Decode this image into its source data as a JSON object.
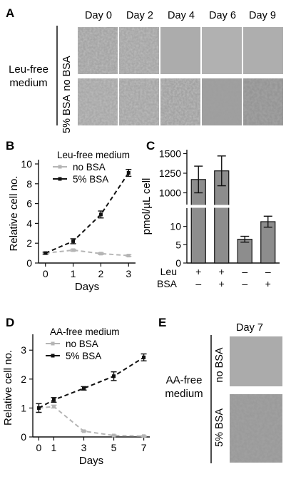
{
  "panel_a": {
    "letter": "A",
    "days": [
      "Day 0",
      "Day 2",
      "Day 4",
      "Day 6",
      "Day 9"
    ],
    "side_label_line1": "Leu-free",
    "side_label_line2": "medium",
    "rows": [
      "no BSA",
      "5% BSA"
    ]
  },
  "panel_e": {
    "letter": "E",
    "day": "Day 7",
    "side_label_line1": "AA-free",
    "side_label_line2": "medium",
    "rows": [
      "no BSA",
      "5% BSA"
    ]
  },
  "chart_data": [
    {
      "panel": "B",
      "type": "line",
      "legend_title": "Leu-free medium",
      "xlabel": "Days",
      "ylabel": "Relative cell no.",
      "x": [
        0,
        1,
        2,
        3
      ],
      "xlim": [
        -0.25,
        3.25
      ],
      "ylim": [
        0,
        10
      ],
      "xticks": [
        "0",
        "1",
        "2",
        "3"
      ],
      "yticks": [
        "0",
        "2",
        "4",
        "6",
        "8",
        "10"
      ],
      "series": [
        {
          "name": "no BSA",
          "color": "#b5b5b5",
          "values": [
            1.0,
            1.3,
            0.95,
            0.75
          ],
          "errors": [
            0.1,
            0.1,
            0.1,
            0.08
          ]
        },
        {
          "name": "5% BSA",
          "color": "#111111",
          "values": [
            1.0,
            2.2,
            4.9,
            9.1
          ],
          "errors": [
            0.1,
            0.25,
            0.35,
            0.35
          ]
        }
      ]
    },
    {
      "panel": "C",
      "type": "bar",
      "ylabel": "pmol/µL cell",
      "categories": [
        "Leu+/BSA-",
        "Leu+/BSA+",
        "Leu-/BSA-",
        "Leu-/BSA+"
      ],
      "row_labels": [
        "Leu",
        "BSA"
      ],
      "leu_signs": [
        "+",
        "+",
        "–",
        "–"
      ],
      "bsa_signs": [
        "–",
        "+",
        "–",
        "+"
      ],
      "values": [
        1170,
        1280,
        6.5,
        11.3
      ],
      "errors": [
        170,
        190,
        0.8,
        1.5
      ],
      "yticks_upper": [
        "1000",
        "1250",
        "1500"
      ],
      "yticks_lower": [
        "0",
        "5",
        "10"
      ],
      "axis_break": true
    },
    {
      "panel": "D",
      "type": "line",
      "legend_title": "AA-free medium",
      "xlabel": "Days",
      "ylabel": "Relative cell no.",
      "x": [
        0,
        1,
        3,
        5,
        7
      ],
      "xlim": [
        -0.4,
        7.4
      ],
      "ylim": [
        0,
        3.4
      ],
      "xticks": [
        "0",
        "1",
        "3",
        "5",
        "7"
      ],
      "yticks": [
        "0",
        "1",
        "2",
        "3"
      ],
      "series": [
        {
          "name": "no BSA",
          "color": "#b5b5b5",
          "values": [
            1.0,
            1.05,
            0.2,
            0.05,
            0.03
          ],
          "errors": [
            0.15,
            0.05,
            0.02,
            0.02,
            0.02
          ]
        },
        {
          "name": "5% BSA",
          "color": "#111111",
          "values": [
            1.0,
            1.28,
            1.68,
            2.1,
            2.75
          ],
          "errors": [
            0.15,
            0.08,
            0.06,
            0.15,
            0.12
          ]
        }
      ]
    }
  ]
}
